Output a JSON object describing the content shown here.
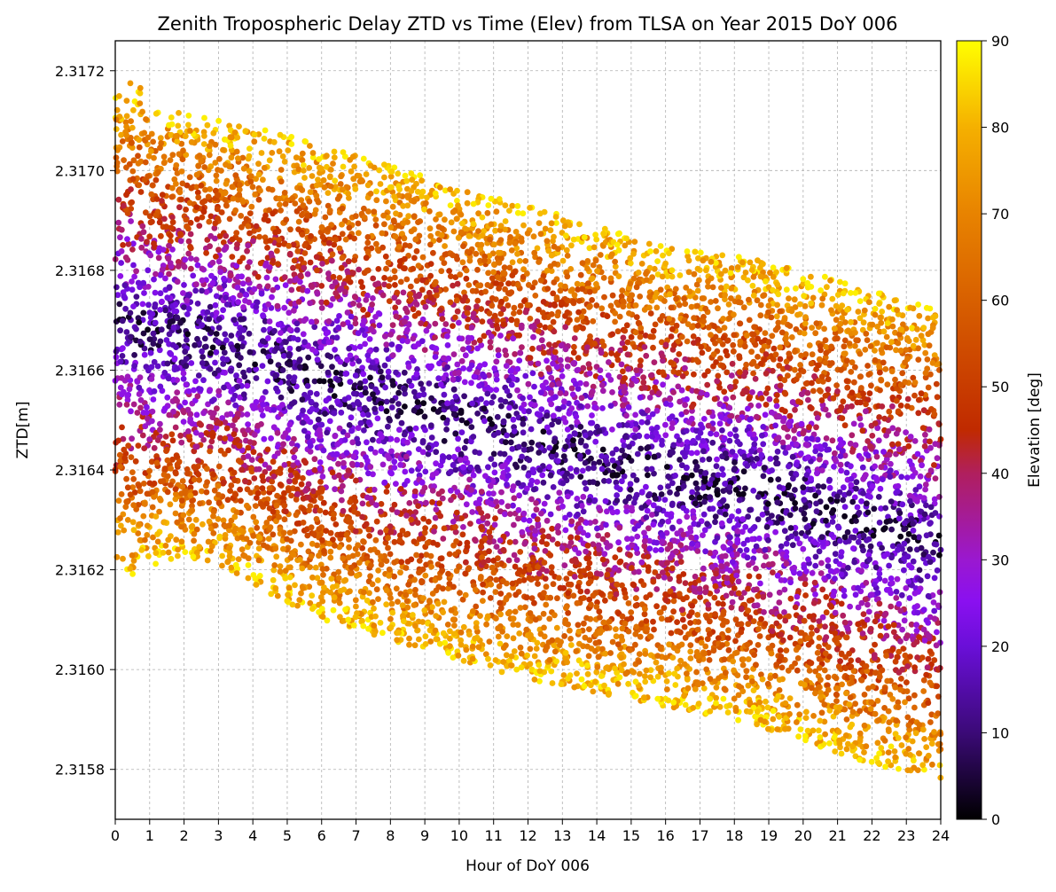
{
  "chart_data": {
    "type": "scatter",
    "title": "Zenith Tropospheric Delay ZTD vs Time (Elev) from TLSA on Year 2015 DoY 006",
    "xlabel": "Hour of DoY 006",
    "ylabel": "ZTD[m]",
    "xlim": [
      0,
      24
    ],
    "ylim": [
      2.3157,
      2.31726
    ],
    "x_ticks": [
      0,
      1,
      2,
      3,
      4,
      5,
      6,
      7,
      8,
      9,
      10,
      11,
      12,
      13,
      14,
      15,
      16,
      17,
      18,
      19,
      20,
      21,
      22,
      23,
      24
    ],
    "x_tick_labels": [
      "0",
      "1",
      "2",
      "3",
      "4",
      "5",
      "6",
      "7",
      "8",
      "9",
      "10",
      "11",
      "12",
      "13",
      "14",
      "15",
      "16",
      "17",
      "18",
      "19",
      "20",
      "21",
      "22",
      "23",
      "24"
    ],
    "y_ticks": [
      2.3158,
      2.316,
      2.3162,
      2.3164,
      2.3166,
      2.3168,
      2.317,
      2.3172
    ],
    "y_tick_labels": [
      "2.3158",
      "2.3160",
      "2.3162",
      "2.3164",
      "2.3166",
      "2.3168",
      "2.3170",
      "2.3172"
    ],
    "grid": true,
    "colorbar": {
      "label": "Elevation [deg]",
      "range": [
        0,
        90
      ],
      "colormap": "gnuplot",
      "ticks": [
        0,
        10,
        20,
        30,
        40,
        50,
        60,
        70,
        80,
        90
      ],
      "tick_labels": [
        "0",
        "10",
        "20",
        "30",
        "40",
        "50",
        "60",
        "70",
        "80",
        "90"
      ]
    },
    "envelope": {
      "hours": [
        0,
        0.5,
        1.5,
        3,
        4.5,
        6,
        7.5,
        9,
        10.5,
        12,
        13.5,
        15,
        16.5,
        18,
        19.5,
        21,
        22.5,
        24
      ],
      "upper_ztd": [
        2.31715,
        2.31718,
        2.31712,
        2.3171,
        2.31708,
        2.31705,
        2.31702,
        2.31699,
        2.31696,
        2.31693,
        2.3169,
        2.31687,
        2.31684,
        2.31683,
        2.31681,
        2.31678,
        2.31675,
        2.31672
      ],
      "lower_ztd": [
        2.31622,
        2.31619,
        2.31622,
        2.31621,
        2.31615,
        2.3161,
        2.31607,
        2.31604,
        2.31601,
        2.31598,
        2.31596,
        2.31594,
        2.31592,
        2.3159,
        2.31587,
        2.31583,
        2.3158,
        2.31577
      ]
    }
  }
}
